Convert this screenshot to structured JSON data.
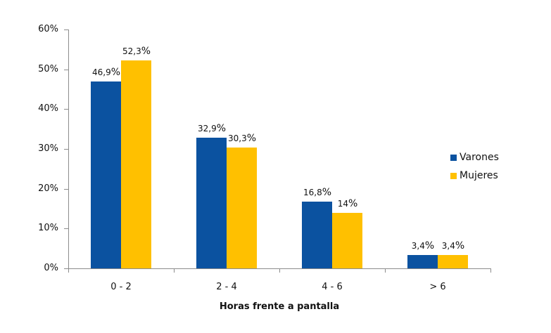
{
  "chart_data": {
    "type": "bar",
    "title": "",
    "xlabel": "Horas frente a pantalla",
    "ylabel": "",
    "categories": [
      "0 - 2",
      "2 - 4",
      "4 - 6",
      "> 6"
    ],
    "series": [
      {
        "name": "Varones",
        "color": "#0b52a0",
        "values": [
          46.9,
          32.9,
          16.8,
          3.4
        ],
        "labels": [
          "46,9",
          "32,9",
          "16,8",
          "3,4"
        ]
      },
      {
        "name": "Mujeres",
        "color": "#ffc000",
        "values": [
          52.3,
          30.3,
          14,
          3.4
        ],
        "labels": [
          "52,3",
          "30,3",
          "14",
          "3,4"
        ]
      }
    ],
    "ylim": [
      0,
      60
    ],
    "yticks": [
      "0%",
      "10%",
      "20%",
      "30%",
      "40%",
      "50%",
      "60%"
    ],
    "grid": false,
    "legend_position": "right"
  },
  "legend": [
    {
      "label": "Varones",
      "color": "#0b52a0"
    },
    {
      "label": "Mujeres",
      "color": "#ffc000"
    }
  ],
  "axis_title": "Horas frente a pantalla",
  "percent_sign": "%"
}
